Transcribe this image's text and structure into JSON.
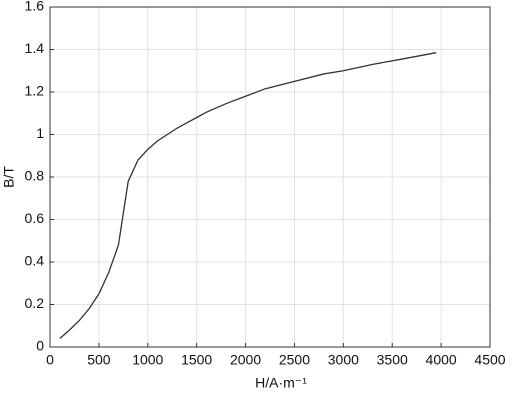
{
  "chart_data": {
    "type": "line",
    "xlabel": "H/A·m⁻¹",
    "ylabel": "B/T",
    "x": [
      100,
      200,
      300,
      400,
      500,
      600,
      700,
      800,
      900,
      1000,
      1100,
      1200,
      1300,
      1400,
      1500,
      1600,
      1800,
      2000,
      2200,
      2500,
      2800,
      3000,
      3300,
      3600,
      3950
    ],
    "values": [
      0.04,
      0.08,
      0.125,
      0.18,
      0.25,
      0.35,
      0.48,
      0.78,
      0.88,
      0.93,
      0.97,
      1.0,
      1.03,
      1.055,
      1.08,
      1.105,
      1.145,
      1.18,
      1.215,
      1.25,
      1.285,
      1.3,
      1.33,
      1.355,
      1.385
    ],
    "color": "#333333",
    "xlim": [
      0,
      4500
    ],
    "xticks": [
      0,
      500,
      1000,
      1500,
      2000,
      2500,
      3000,
      3500,
      4000,
      4500
    ],
    "ylim": [
      0,
      1.6
    ],
    "yticks": [
      0,
      0.2,
      0.4,
      0.6,
      0.8,
      1,
      1.2,
      1.4,
      1.6
    ],
    "grid": true
  }
}
